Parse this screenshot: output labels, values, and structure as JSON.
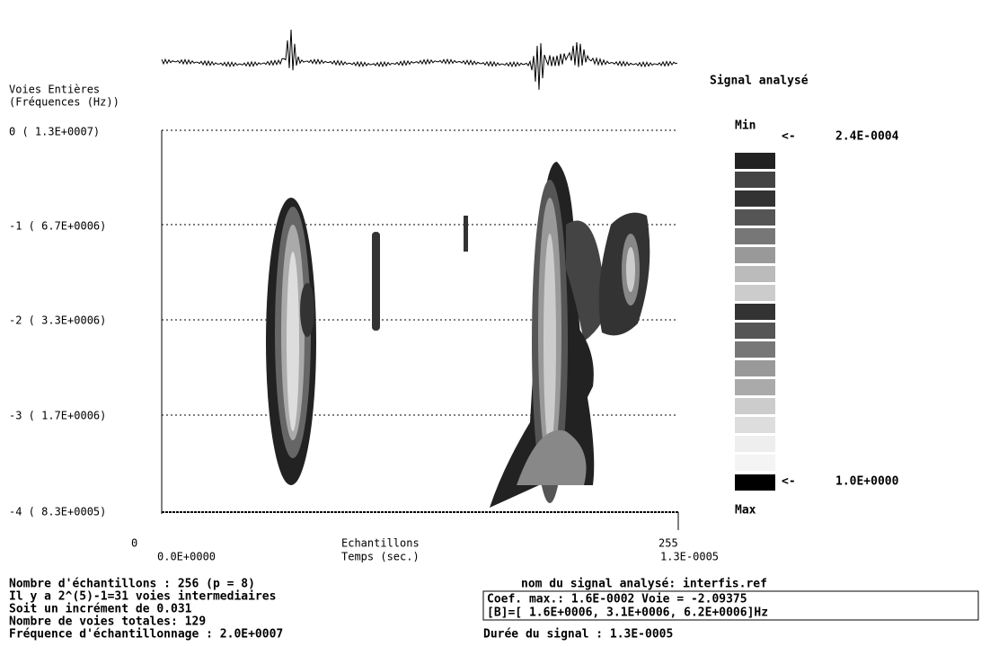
{
  "header": {
    "left_title": [
      "Voies Entières",
      "(Fréquences (Hz))"
    ],
    "signal_label": "Signal analysé"
  },
  "y_axis": {
    "labels": [
      "0 ( 1.3E+0007)",
      "-1 ( 6.7E+0006)",
      "-2 ( 3.3E+0006)",
      "-3 ( 1.7E+0006)",
      "-4 ( 8.3E+0005)"
    ]
  },
  "colorbar": {
    "min_label": "Min",
    "min_arrow": "<-",
    "min_value": "2.4E-0004",
    "max_arrow": "<-",
    "max_value": "1.0E+0000",
    "max_label": "Max"
  },
  "x_axis": {
    "start_index": "0",
    "start_time": "0.0E+0000",
    "title": "Echantillons",
    "subtitle": "Temps (sec.)",
    "end_index": "255",
    "end_time": "1.3E-0005"
  },
  "info": {
    "lines": [
      "Nombre d'échantillons : 256 (p = 8)",
      "Il y a 2^(5)-1=31 voies intermediaires",
      "Soit un incrément de  0.031",
      "Nombre de voies totales: 129",
      "Fréquence d'échantillonnage : 2.0E+0007"
    ]
  },
  "signal": {
    "name_line": "nom du signal analysé: interfis.ref",
    "box": [
      "Coef. max.: 1.6E-0002  Voie = -2.09375",
      "[B]=[ 1.6E+0006, 3.1E+0006, 6.2E+0006]Hz"
    ],
    "duration": "Durée du signal :  1.3E-0005"
  }
}
